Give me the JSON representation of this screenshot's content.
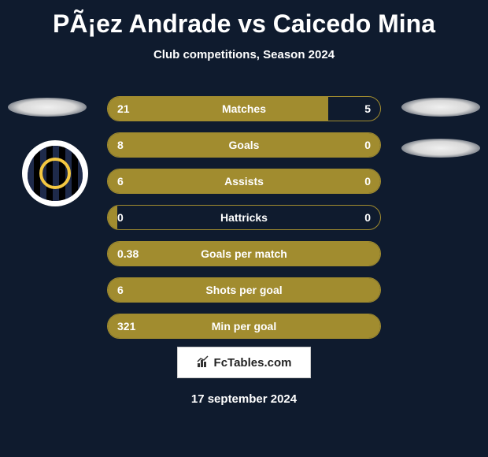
{
  "header": {
    "title": "PÃ¡ez Andrade vs Caicedo Mina",
    "subtitle": "Club competitions, Season 2024"
  },
  "colors": {
    "background": "#0f1b2e",
    "bar_fill": "#a18c2f",
    "bar_border": "#a18c2f",
    "text": "#ffffff"
  },
  "badge": {
    "outer_bg": "#ffffff",
    "inner_bg": "#1e2a4a",
    "stripe_dark": "#000000",
    "ring_color": "#f4c842"
  },
  "stats": [
    {
      "label": "Matches",
      "left_val": "21",
      "right_val": "5",
      "left_width_pct": 80.8
    },
    {
      "label": "Goals",
      "left_val": "8",
      "right_val": "0",
      "left_width_pct": 100
    },
    {
      "label": "Assists",
      "left_val": "6",
      "right_val": "0",
      "left_width_pct": 100
    },
    {
      "label": "Hattricks",
      "left_val": "0",
      "right_val": "0",
      "left_width_pct": 0
    },
    {
      "label": "Goals per match",
      "left_val": "0.38",
      "right_val": "",
      "left_width_pct": 100
    },
    {
      "label": "Shots per goal",
      "left_val": "6",
      "right_val": "",
      "left_width_pct": 100
    },
    {
      "label": "Min per goal",
      "left_val": "321",
      "right_val": "",
      "left_width_pct": 100
    }
  ],
  "footer": {
    "logo_text": "FcTables.com",
    "date": "17 september 2024"
  }
}
